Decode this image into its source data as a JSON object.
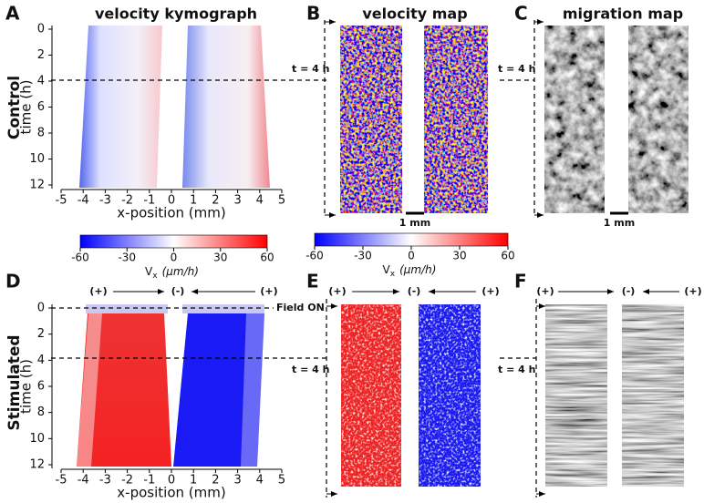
{
  "panels": [
    {
      "letter": "A",
      "title": "velocity kymograph"
    },
    {
      "letter": "B",
      "title": "velocity map"
    },
    {
      "letter": "C",
      "title": "migration map"
    },
    {
      "letter": "D"
    },
    {
      "letter": "E"
    },
    {
      "letter": "F"
    }
  ],
  "row_labels": [
    "Control",
    "Stimulated"
  ],
  "kymograph_axes": {
    "y_label": "time (h)",
    "yticks": [
      0,
      2,
      4,
      6,
      8,
      10,
      12
    ],
    "x_label": "x-position (mm)",
    "xticks": [
      -5,
      -4,
      -3,
      -2,
      -1,
      0,
      1,
      2,
      3,
      4,
      5
    ]
  },
  "colorbar": {
    "ticks": [
      -60,
      -30,
      0,
      30,
      60
    ],
    "label": "V",
    "label_subscript": "x",
    "unit": "(μm/h)"
  },
  "annotations": {
    "time_marker": "t = 4 h",
    "scale_bar": "1 mm",
    "field_on": "Field ON",
    "plus": "(+)",
    "minus": "(-)"
  }
}
